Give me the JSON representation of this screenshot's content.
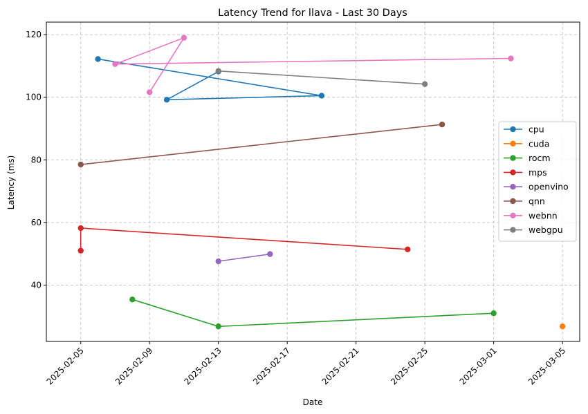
{
  "chart_data": {
    "type": "line",
    "title": "Latency Trend for llava - Last 30 Days",
    "xlabel": "Date",
    "ylabel": "Latency (ms)",
    "x_type": "date",
    "xlim": [
      "2025-02-03",
      "2025-03-06"
    ],
    "ylim": [
      22,
      124
    ],
    "x_ticks": [
      "2025-02-05",
      "2025-02-09",
      "2025-02-13",
      "2025-02-17",
      "2025-02-21",
      "2025-02-25",
      "2025-03-01",
      "2025-03-05"
    ],
    "y_ticks": [
      40,
      60,
      80,
      100,
      120
    ],
    "grid": true,
    "legend_position": "center-right",
    "series": [
      {
        "name": "cpu",
        "color": "#1f77b4",
        "points": [
          [
            "2025-02-06",
            112.2
          ],
          [
            "2025-02-19",
            100.5
          ],
          [
            "2025-02-10",
            99.2
          ],
          [
            "2025-02-13",
            108.2
          ]
        ]
      },
      {
        "name": "cuda",
        "color": "#ff7f0e",
        "points": [
          [
            "2025-03-05",
            26.8
          ]
        ]
      },
      {
        "name": "rocm",
        "color": "#2ca02c",
        "points": [
          [
            "2025-02-08",
            35.4
          ],
          [
            "2025-02-13",
            26.8
          ],
          [
            "2025-03-01",
            31.0
          ]
        ]
      },
      {
        "name": "mps",
        "color": "#d62728",
        "points": [
          [
            "2025-02-05",
            51.0
          ],
          [
            "2025-02-05",
            58.2
          ],
          [
            "2025-02-24",
            51.4
          ]
        ]
      },
      {
        "name": "openvino",
        "color": "#9467bd",
        "points": [
          [
            "2025-02-13",
            47.6
          ],
          [
            "2025-02-16",
            49.9
          ]
        ]
      },
      {
        "name": "qnn",
        "color": "#8c564b",
        "points": [
          [
            "2025-02-05",
            78.5
          ],
          [
            "2025-02-26",
            91.3
          ]
        ]
      },
      {
        "name": "webnn",
        "color": "#e377c2",
        "points": [
          [
            "2025-02-09",
            101.6
          ],
          [
            "2025-02-11",
            119.0
          ],
          [
            "2025-02-07",
            110.6
          ],
          [
            "2025-03-02",
            112.4
          ]
        ]
      },
      {
        "name": "webgpu",
        "color": "#7f7f7f",
        "points": [
          [
            "2025-02-13",
            108.4
          ],
          [
            "2025-02-25",
            104.2
          ]
        ]
      }
    ]
  }
}
